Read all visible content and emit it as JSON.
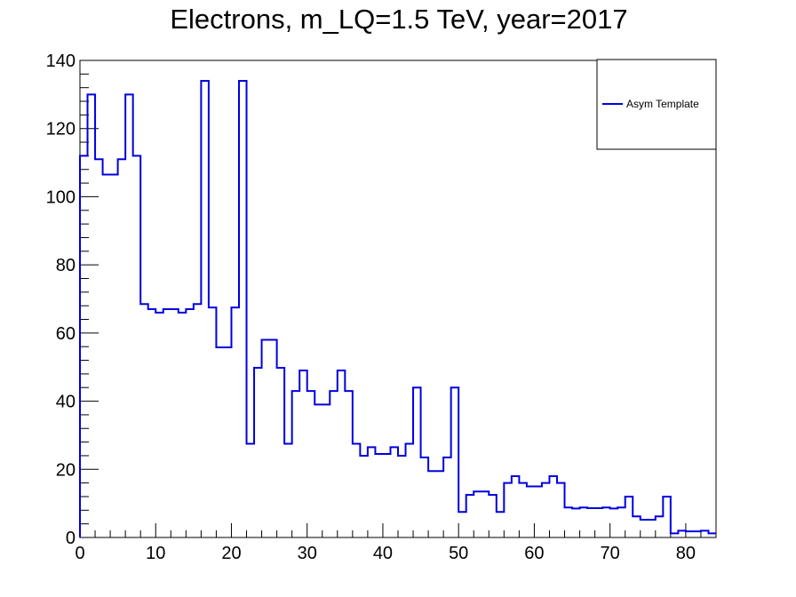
{
  "chart_data": {
    "type": "line",
    "style": "step-histogram",
    "title": "Electrons, m_LQ=1.5 TeV, year=2017",
    "xlabel": "",
    "ylabel": "",
    "xlim": [
      0,
      84
    ],
    "ylim": [
      0,
      140
    ],
    "bin_width": 1,
    "x_ticks": [
      0,
      10,
      20,
      30,
      40,
      50,
      60,
      70,
      80
    ],
    "y_ticks": [
      0,
      20,
      40,
      60,
      80,
      100,
      120,
      140
    ],
    "x_tick_labels": [
      "0",
      "10",
      "20",
      "30",
      "40",
      "50",
      "60",
      "70",
      "80"
    ],
    "y_tick_labels": [
      "0",
      "20",
      "40",
      "60",
      "80",
      "100",
      "120",
      "140"
    ],
    "grid": false,
    "legend_position": "top-right",
    "series": [
      {
        "name": "Asym Template",
        "color": "#0000e0",
        "bin_edges_start": 0,
        "values": [
          112,
          130,
          111,
          106.5,
          106.5,
          111,
          130,
          112,
          68.5,
          67,
          66,
          67,
          67,
          66,
          67,
          68.5,
          134,
          67.5,
          55.8,
          55.8,
          67.5,
          134,
          27.5,
          49.8,
          58,
          58,
          49.8,
          27.5,
          43,
          49,
          43,
          39,
          39,
          43,
          49,
          43,
          27.5,
          24,
          26.5,
          24.5,
          24.5,
          26.5,
          24,
          27.5,
          44,
          23.5,
          19.5,
          19.5,
          23.5,
          44,
          7.5,
          12.5,
          13.5,
          13.5,
          12.5,
          7.5,
          16,
          18,
          16,
          15,
          15,
          16,
          18,
          16,
          8.8,
          8.5,
          8.8,
          8.6,
          8.6,
          8.8,
          8.5,
          8.8,
          12,
          6.2,
          5.2,
          5.2,
          6.2,
          12,
          1.2,
          2,
          1.8,
          1.8,
          2,
          1.2
        ]
      }
    ]
  }
}
